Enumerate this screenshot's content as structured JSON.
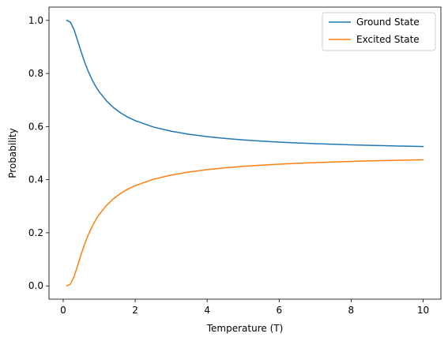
{
  "chart_data": {
    "type": "line",
    "title": "",
    "xlabel": "Temperature (T)",
    "ylabel": "Probability",
    "xlim": [
      -0.395,
      10.495
    ],
    "ylim": [
      -0.05,
      1.05
    ],
    "xticks": [
      0,
      2,
      4,
      6,
      8,
      10
    ],
    "xtick_labels": [
      "0",
      "2",
      "4",
      "6",
      "8",
      "10"
    ],
    "yticks": [
      0.0,
      0.2,
      0.4,
      0.6,
      0.8,
      1.0
    ],
    "ytick_labels": [
      "0.0",
      "0.2",
      "0.4",
      "0.6",
      "0.8",
      "1.0"
    ],
    "grid": false,
    "legend": "top-right",
    "x": [
      0.1,
      0.2,
      0.3,
      0.4,
      0.5,
      0.6,
      0.7,
      0.8,
      0.9,
      1.0,
      1.2,
      1.4,
      1.6,
      1.8,
      2.0,
      2.5,
      3.0,
      3.5,
      4.0,
      4.5,
      5.0,
      5.5,
      6.0,
      6.5,
      7.0,
      7.5,
      8.0,
      8.5,
      9.0,
      9.5,
      10.0
    ],
    "series": [
      {
        "name": "Ground State",
        "color": "#1f77b4",
        "values": [
          1.0,
          0.9933,
          0.9656,
          0.9241,
          0.8808,
          0.8411,
          0.8067,
          0.7773,
          0.7524,
          0.7311,
          0.6971,
          0.6713,
          0.6512,
          0.6351,
          0.6225,
          0.5987,
          0.5826,
          0.5709,
          0.5622,
          0.5553,
          0.5498,
          0.5453,
          0.5416,
          0.5384,
          0.5357,
          0.5333,
          0.5312,
          0.5294,
          0.5278,
          0.5263,
          0.525
        ]
      },
      {
        "name": "Excited State",
        "color": "#ff7f0e",
        "values": [
          0.0,
          0.0067,
          0.0344,
          0.0759,
          0.1192,
          0.1589,
          0.1933,
          0.2227,
          0.2476,
          0.2689,
          0.3029,
          0.3287,
          0.3488,
          0.3649,
          0.3775,
          0.4013,
          0.4174,
          0.4291,
          0.4378,
          0.4447,
          0.4502,
          0.4547,
          0.4584,
          0.4616,
          0.4643,
          0.4667,
          0.4688,
          0.4706,
          0.4722,
          0.4737,
          0.475
        ]
      }
    ]
  }
}
